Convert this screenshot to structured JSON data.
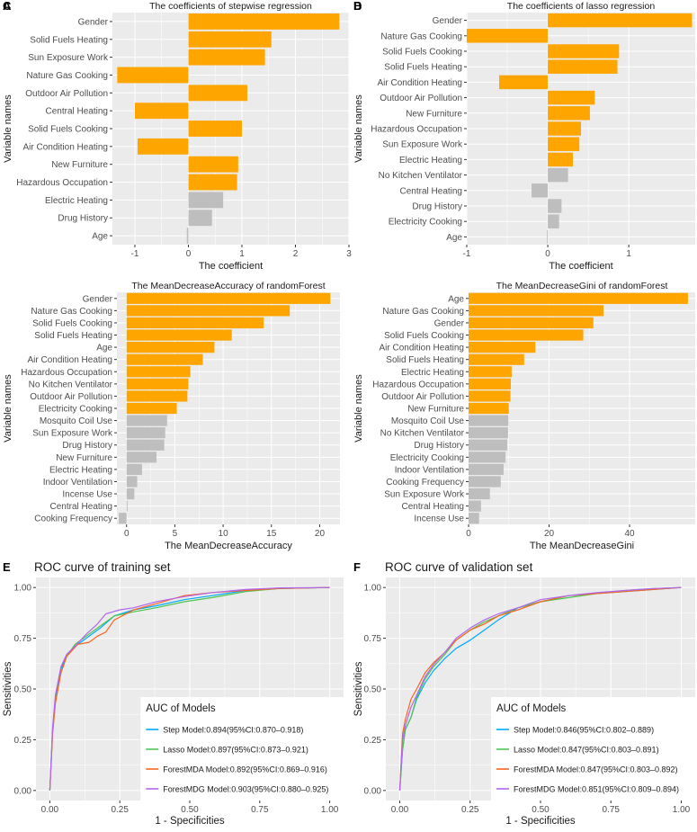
{
  "colors": {
    "panel_bg": "#EBEBEB",
    "grid": "#FFFFFF",
    "highlight": "#FFA500",
    "muted": "#BEBEBE",
    "text": "#1A1A1A",
    "tick_text": "#4D4D4D"
  },
  "chart_data": [
    {
      "type": "bar",
      "orientation": "horizontal",
      "panel_label": "A",
      "title": "The coefficients of stepwise regression",
      "xlabel": "The coefficient",
      "ylabel": "Variable names",
      "xlim": [
        -1.42,
        3.0
      ],
      "xticks": [
        -1,
        0,
        1,
        2,
        3
      ],
      "categories": [
        "Gender",
        "Solid Fuels Heating",
        "Sun Exposure Work",
        "Nature Gas Cooking",
        "Outdoor Air Pollution",
        "Central Heating",
        "Solid Fuels Cooking",
        "Air Condition Heating",
        "New Furniture",
        "Hazardous Occupation",
        "Electric Heating",
        "Drug History",
        "Age"
      ],
      "values": [
        2.82,
        1.55,
        1.43,
        -1.33,
        1.1,
        -1.0,
        1.0,
        -0.95,
        0.93,
        0.91,
        0.65,
        0.44,
        -0.03
      ],
      "highlighted": [
        true,
        true,
        true,
        true,
        true,
        true,
        true,
        true,
        true,
        true,
        false,
        false,
        false
      ]
    },
    {
      "type": "bar",
      "orientation": "horizontal",
      "panel_label": "B",
      "title": "The coefficients of lasso regression",
      "xlabel": "The coefficient",
      "ylabel": "Variable names",
      "xlim": [
        -1.0,
        1.82
      ],
      "xticks": [
        -1,
        0,
        1
      ],
      "categories": [
        "Gender",
        "Nature Gas Cooking",
        "Solid Fuels Cooking",
        "Solid Fuels Heating",
        "Air Condition Heating",
        "Outdoor Air Pollution",
        "New Furniture",
        "Hazardous Occupation",
        "Sun Exposure Work",
        "Electric Heating",
        "No Kitchen Ventilator",
        "Central Heating",
        "Drug History",
        "Electricity Cooking",
        "Age"
      ],
      "values": [
        1.78,
        -1.0,
        0.88,
        0.86,
        -0.6,
        0.58,
        0.52,
        0.41,
        0.39,
        0.31,
        0.25,
        -0.2,
        0.17,
        0.14,
        -0.01
      ],
      "highlighted": [
        true,
        true,
        true,
        true,
        true,
        true,
        true,
        true,
        true,
        true,
        false,
        false,
        false,
        false,
        false
      ]
    },
    {
      "type": "bar",
      "orientation": "horizontal",
      "panel_label": "C",
      "title": "The MeanDecreaseAccuracy of randomForest",
      "xlabel": "The MeanDecreaseAccuracy",
      "ylabel": "Variable names",
      "xlim": [
        -1.0,
        22.1
      ],
      "xticks": [
        0,
        5,
        10,
        15,
        20
      ],
      "categories": [
        "Gender",
        "Nature Gas Cooking",
        "Solid Fuels Cooking",
        "Solid Fuels Heating",
        "Age",
        "Air Condition Heating",
        "Hazardous Occupation",
        "No Kitchen Ventilator",
        "Outdoor Air Pollution",
        "Electricity Cooking",
        "Mosquito Coil Use",
        "Sun Exposure Work",
        "Drug History",
        "New Furniture",
        "Electric Heating",
        "Indoor Ventilation",
        "Incense Use",
        "Central Heating",
        "Cooking Frequency"
      ],
      "values": [
        21.1,
        16.9,
        14.2,
        10.9,
        9.1,
        7.9,
        6.6,
        6.4,
        6.3,
        5.2,
        4.2,
        4.0,
        3.9,
        3.1,
        1.6,
        1.1,
        0.8,
        0.1,
        -0.8
      ],
      "highlighted": [
        true,
        true,
        true,
        true,
        true,
        true,
        true,
        true,
        true,
        true,
        false,
        false,
        false,
        false,
        false,
        false,
        false,
        false,
        false
      ]
    },
    {
      "type": "bar",
      "orientation": "horizontal",
      "panel_label": "D",
      "title": "The MeanDecreaseGini of randomForest",
      "xlabel": "The MeanDecreaseGini",
      "ylabel": "Variable names",
      "xlim": [
        0,
        56.3
      ],
      "xticks": [
        0,
        20,
        40
      ],
      "categories": [
        "Age",
        "Nature Gas Cooking",
        "Gender",
        "Solid Fuels Cooking",
        "Air Condition Heating",
        "Solid Fuels Heating",
        "Electric Heating",
        "Hazardous Occupation",
        "Outdoor Air Pollution",
        "New Furniture",
        "Mosquito Coil Use",
        "No Kitchen Ventilator",
        "Drug History",
        "Electricity Cooking",
        "Indoor Ventilation",
        "Cooking Frequency",
        "Sun Exposure Work",
        "Central Heating",
        "Incense Use"
      ],
      "values": [
        54.5,
        33.5,
        31.0,
        28.5,
        16.6,
        13.8,
        10.7,
        10.5,
        10.4,
        10.0,
        9.9,
        9.8,
        9.6,
        9.2,
        8.7,
        8.0,
        5.3,
        3.1,
        2.6
      ],
      "highlighted": [
        true,
        true,
        true,
        true,
        true,
        true,
        true,
        true,
        true,
        true,
        false,
        false,
        false,
        false,
        false,
        false,
        false,
        false,
        false
      ]
    },
    {
      "type": "line",
      "subtype": "roc",
      "panel_label": "E",
      "title": "ROC curve of training set",
      "xlabel": "1 - Specificities",
      "ylabel": "Sensitivities",
      "xlim": [
        0,
        1
      ],
      "ylim": [
        0,
        1
      ],
      "xticks": [
        "0.00",
        "0.25",
        "0.50",
        "0.75",
        "1.00"
      ],
      "yticks": [
        "0.00",
        "0.25",
        "0.50",
        "0.75",
        "1.00"
      ],
      "legend_title": "AUC of Models",
      "legend_position": "bottom-right",
      "series": [
        {
          "name": "Step Model:0.894(95%CI:0.870–0.918)",
          "color": "#00A9FF",
          "points": [
            [
              0,
              0
            ],
            [
              0.005,
              0.15
            ],
            [
              0.01,
              0.3
            ],
            [
              0.02,
              0.45
            ],
            [
              0.04,
              0.6
            ],
            [
              0.06,
              0.66
            ],
            [
              0.09,
              0.71
            ],
            [
              0.13,
              0.75
            ],
            [
              0.18,
              0.8
            ],
            [
              0.23,
              0.86
            ],
            [
              0.3,
              0.89
            ],
            [
              0.38,
              0.91
            ],
            [
              0.48,
              0.94
            ],
            [
              0.58,
              0.96
            ],
            [
              0.7,
              0.985
            ],
            [
              0.82,
              0.995
            ],
            [
              1,
              1
            ]
          ]
        },
        {
          "name": "Lasso Model:0.897(95%CI:0.873–0.921)",
          "color": "#4DC44D",
          "points": [
            [
              0,
              0
            ],
            [
              0.005,
              0.14
            ],
            [
              0.01,
              0.29
            ],
            [
              0.02,
              0.44
            ],
            [
              0.04,
              0.58
            ],
            [
              0.06,
              0.66
            ],
            [
              0.09,
              0.72
            ],
            [
              0.13,
              0.76
            ],
            [
              0.18,
              0.81
            ],
            [
              0.23,
              0.86
            ],
            [
              0.3,
              0.88
            ],
            [
              0.38,
              0.9
            ],
            [
              0.48,
              0.93
            ],
            [
              0.58,
              0.95
            ],
            [
              0.7,
              0.98
            ],
            [
              0.82,
              0.995
            ],
            [
              1,
              1
            ]
          ]
        },
        {
          "name": "ForestMDA Model:0.892(95%CI:0.869–0.916)",
          "color": "#F8661E",
          "points": [
            [
              0,
              0
            ],
            [
              0.005,
              0.13
            ],
            [
              0.01,
              0.28
            ],
            [
              0.02,
              0.43
            ],
            [
              0.04,
              0.58
            ],
            [
              0.06,
              0.66
            ],
            [
              0.1,
              0.72
            ],
            [
              0.14,
              0.73
            ],
            [
              0.17,
              0.76
            ],
            [
              0.2,
              0.78
            ],
            [
              0.23,
              0.84
            ],
            [
              0.3,
              0.89
            ],
            [
              0.38,
              0.92
            ],
            [
              0.48,
              0.96
            ],
            [
              0.58,
              0.975
            ],
            [
              0.7,
              0.985
            ],
            [
              0.82,
              0.995
            ],
            [
              1,
              1
            ]
          ]
        },
        {
          "name": "ForestMDG Model:0.903(95%CI:0.880–0.925)",
          "color": "#B266F0",
          "points": [
            [
              0,
              0
            ],
            [
              0.005,
              0.15
            ],
            [
              0.01,
              0.31
            ],
            [
              0.02,
              0.47
            ],
            [
              0.04,
              0.61
            ],
            [
              0.06,
              0.67
            ],
            [
              0.09,
              0.71
            ],
            [
              0.13,
              0.77
            ],
            [
              0.17,
              0.82
            ],
            [
              0.2,
              0.87
            ],
            [
              0.25,
              0.89
            ],
            [
              0.3,
              0.9
            ],
            [
              0.38,
              0.93
            ],
            [
              0.48,
              0.955
            ],
            [
              0.58,
              0.975
            ],
            [
              0.7,
              0.99
            ],
            [
              0.82,
              0.998
            ],
            [
              1,
              1
            ]
          ]
        }
      ]
    },
    {
      "type": "line",
      "subtype": "roc",
      "panel_label": "F",
      "title": "ROC curve of validation set",
      "xlabel": "1 - Specificities",
      "ylabel": "Sensitivities",
      "xlim": [
        0,
        1
      ],
      "ylim": [
        0,
        1
      ],
      "xticks": [
        "0.00",
        "0.25",
        "0.50",
        "0.75",
        "1.00"
      ],
      "yticks": [
        "0.00",
        "0.25",
        "0.50",
        "0.75",
        "1.00"
      ],
      "legend_title": "AUC of Models",
      "legend_position": "bottom-right",
      "series": [
        {
          "name": "Step Model:0.846(95%CI:0.802–0.889)",
          "color": "#00A9FF",
          "points": [
            [
              0,
              0
            ],
            [
              0.01,
              0.2
            ],
            [
              0.02,
              0.3
            ],
            [
              0.04,
              0.36
            ],
            [
              0.06,
              0.45
            ],
            [
              0.09,
              0.53
            ],
            [
              0.12,
              0.59
            ],
            [
              0.16,
              0.65
            ],
            [
              0.2,
              0.7
            ],
            [
              0.25,
              0.74
            ],
            [
              0.3,
              0.79
            ],
            [
              0.35,
              0.84
            ],
            [
              0.42,
              0.9
            ],
            [
              0.5,
              0.93
            ],
            [
              0.6,
              0.96
            ],
            [
              0.7,
              0.97
            ],
            [
              0.8,
              0.98
            ],
            [
              0.9,
              0.99
            ],
            [
              1,
              1
            ]
          ]
        },
        {
          "name": "Lasso Model:0.847(95%CI:0.803–0.891)",
          "color": "#4DC44D",
          "points": [
            [
              0,
              0
            ],
            [
              0.01,
              0.2
            ],
            [
              0.02,
              0.3
            ],
            [
              0.04,
              0.36
            ],
            [
              0.06,
              0.46
            ],
            [
              0.09,
              0.55
            ],
            [
              0.12,
              0.61
            ],
            [
              0.16,
              0.67
            ],
            [
              0.2,
              0.74
            ],
            [
              0.25,
              0.79
            ],
            [
              0.3,
              0.83
            ],
            [
              0.35,
              0.86
            ],
            [
              0.42,
              0.9
            ],
            [
              0.5,
              0.93
            ],
            [
              0.6,
              0.95
            ],
            [
              0.7,
              0.97
            ],
            [
              0.8,
              0.985
            ],
            [
              0.9,
              0.995
            ],
            [
              1,
              1
            ]
          ]
        },
        {
          "name": "ForestMDA Model:0.847(95%CI:0.803–0.892)",
          "color": "#F8661E",
          "points": [
            [
              0,
              0
            ],
            [
              0.01,
              0.28
            ],
            [
              0.02,
              0.35
            ],
            [
              0.04,
              0.45
            ],
            [
              0.06,
              0.5
            ],
            [
              0.09,
              0.58
            ],
            [
              0.12,
              0.63
            ],
            [
              0.16,
              0.68
            ],
            [
              0.2,
              0.74
            ],
            [
              0.25,
              0.79
            ],
            [
              0.3,
              0.82
            ],
            [
              0.35,
              0.86
            ],
            [
              0.42,
              0.89
            ],
            [
              0.5,
              0.93
            ],
            [
              0.6,
              0.96
            ],
            [
              0.7,
              0.97
            ],
            [
              0.8,
              0.98
            ],
            [
              0.9,
              0.99
            ],
            [
              1,
              1
            ]
          ]
        },
        {
          "name": "ForestMDG Model:0.851(95%CI:0.809–0.894)",
          "color": "#B266F0",
          "points": [
            [
              0,
              0
            ],
            [
              0.01,
              0.25
            ],
            [
              0.02,
              0.32
            ],
            [
              0.04,
              0.41
            ],
            [
              0.06,
              0.47
            ],
            [
              0.09,
              0.56
            ],
            [
              0.12,
              0.62
            ],
            [
              0.16,
              0.68
            ],
            [
              0.2,
              0.75
            ],
            [
              0.25,
              0.8
            ],
            [
              0.3,
              0.84
            ],
            [
              0.35,
              0.87
            ],
            [
              0.42,
              0.9
            ],
            [
              0.5,
              0.94
            ],
            [
              0.6,
              0.96
            ],
            [
              0.7,
              0.975
            ],
            [
              0.8,
              0.985
            ],
            [
              0.9,
              0.995
            ],
            [
              1,
              1
            ]
          ]
        }
      ]
    }
  ]
}
